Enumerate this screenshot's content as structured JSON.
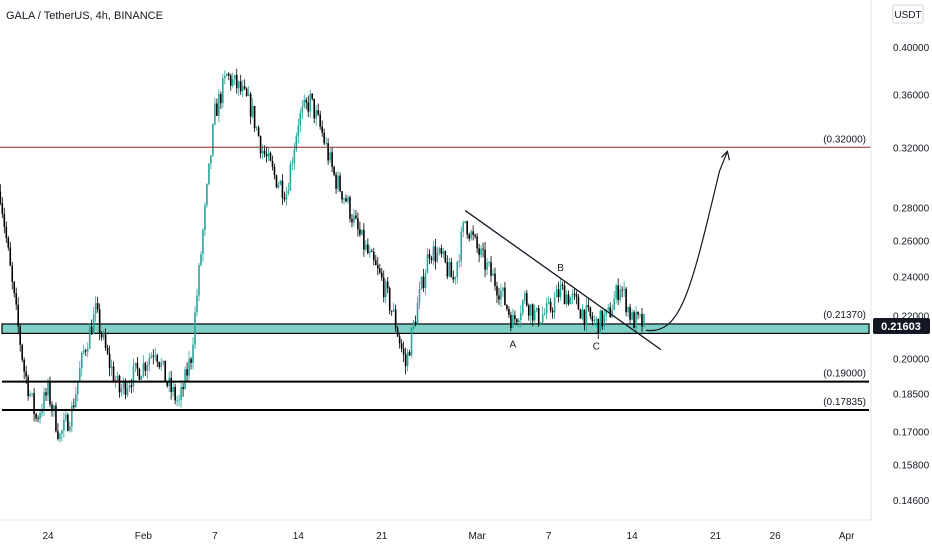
{
  "header": {
    "title": "GALA / TetherUS, 4h, BINANCE"
  },
  "price_axis": {
    "currency_label": "USDT",
    "current_price_label": "0.21603"
  },
  "colors": {
    "up_candle": "#26a69a",
    "down_candle": "#000000",
    "resistance_line": "#8b2a2a",
    "support_zone": "#7fcfc7",
    "support_zone_border": "#000000",
    "current_price_badge": "#131722"
  },
  "chart_data": {
    "type": "candlestick",
    "title": "GALA / TetherUS, 4h, BINANCE",
    "ylabel": "USDT",
    "yscale": "log",
    "ylim": [
      0.136,
      0.43
    ],
    "y_ticks": [
      "0.14600",
      "0.15800",
      "0.17000",
      "0.18500",
      "0.20000",
      "0.22000",
      "0.24000",
      "0.26000",
      "0.28000",
      "0.32000",
      "0.36000",
      "0.40000"
    ],
    "x_ticks": [
      "24",
      "Feb",
      "7",
      "14",
      "21",
      "Mar",
      "7",
      "14",
      "21",
      "26",
      "Apr"
    ],
    "price_path": [
      [
        "Jan 20",
        0.29
      ],
      [
        "Jan 21",
        0.235
      ],
      [
        "Jan 22",
        0.195
      ],
      [
        "Jan 23",
        0.175
      ],
      [
        "Jan 24",
        0.186
      ],
      [
        "Jan 25",
        0.168
      ],
      [
        "Jan 26",
        0.178
      ],
      [
        "Jan 27",
        0.203
      ],
      [
        "Jan 28",
        0.222
      ],
      [
        "Jan 29",
        0.2
      ],
      [
        "Jan 30",
        0.186
      ],
      [
        "Jan 31",
        0.192
      ],
      [
        "Feb 1",
        0.197
      ],
      [
        "Feb 2",
        0.205
      ],
      [
        "Feb 3",
        0.189
      ],
      [
        "Feb 4",
        0.181
      ],
      [
        "Feb 5",
        0.201
      ],
      [
        "Feb 6",
        0.265
      ],
      [
        "Feb 7",
        0.345
      ],
      [
        "Feb 8",
        0.375
      ],
      [
        "Feb 9",
        0.365
      ],
      [
        "Feb 10",
        0.35
      ],
      [
        "Feb 11",
        0.318
      ],
      [
        "Feb 12",
        0.3
      ],
      [
        "Feb 13",
        0.29
      ],
      [
        "Feb 14",
        0.34
      ],
      [
        "Feb 15",
        0.355
      ],
      [
        "Feb 16",
        0.33
      ],
      [
        "Feb 17",
        0.3
      ],
      [
        "Feb 18",
        0.285
      ],
      [
        "Feb 19",
        0.265
      ],
      [
        "Feb 20",
        0.25
      ],
      [
        "Feb 21",
        0.238
      ],
      [
        "Feb 22",
        0.22
      ],
      [
        "Feb 23",
        0.197
      ],
      [
        "Feb 24",
        0.225
      ],
      [
        "Feb 25",
        0.255
      ],
      [
        "Feb 26",
        0.25
      ],
      [
        "Feb 27",
        0.238
      ],
      [
        "Feb 28",
        0.272
      ],
      [
        "Mar 1",
        0.255
      ],
      [
        "Mar 2",
        0.243
      ],
      [
        "Mar 3",
        0.232
      ],
      [
        "Mar 4",
        0.217
      ],
      [
        "Mar 5",
        0.229
      ],
      [
        "Mar 6",
        0.219
      ],
      [
        "Mar 7",
        0.222
      ],
      [
        "Mar 8",
        0.233
      ],
      [
        "Mar 9",
        0.228
      ],
      [
        "Mar 10",
        0.221
      ],
      [
        "Mar 11",
        0.216
      ],
      [
        "Mar 12",
        0.22
      ],
      [
        "Mar 13",
        0.236
      ],
      [
        "Mar 14",
        0.218
      ],
      [
        "Mar 15",
        0.216
      ]
    ],
    "levels": [
      {
        "label": "(0.32000)",
        "value": 0.32
      },
      {
        "label": "(0.21370)",
        "value": 0.2137
      },
      {
        "label": "(0.19000)",
        "value": 0.19
      },
      {
        "label": "(0.17835)",
        "value": 0.17835
      }
    ],
    "support_zone": [
      0.2115,
      0.216
    ],
    "trendline": {
      "from": [
        "Feb 28",
        0.278
      ],
      "to": [
        "Mar 16",
        0.204
      ]
    },
    "projection": {
      "from": [
        "Mar 15",
        0.213
      ],
      "to": [
        "Mar 22",
        0.32
      ]
    },
    "wave_labels": [
      {
        "text": "A",
        "date": "Mar 4",
        "price": 0.205
      },
      {
        "text": "B",
        "date": "Mar 8",
        "price": 0.243
      },
      {
        "text": "C",
        "date": "Mar 11",
        "price": 0.204
      }
    ]
  }
}
